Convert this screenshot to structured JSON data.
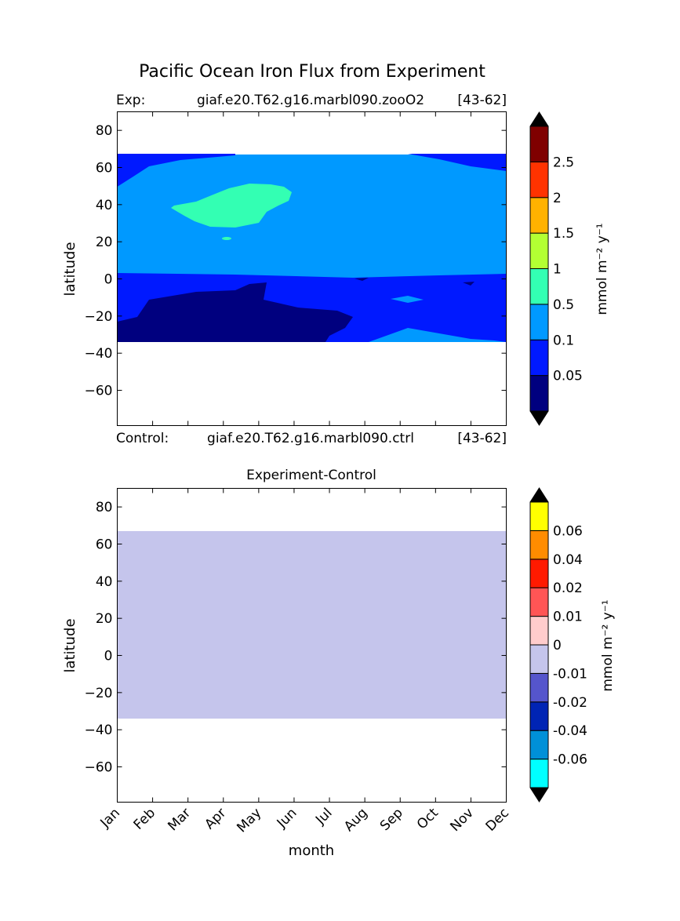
{
  "figure": {
    "title": "Pacific Ocean Iron Flux from Experiment"
  },
  "chart_data": [
    {
      "type": "heatmap",
      "panel": "experiment",
      "left_title": "Exp:",
      "center_title": "giaf.e20.T62.g16.marbl090.zooO2",
      "right_title": "[43-62]",
      "bottom_left_label": "Control:",
      "bottom_center_label": "giaf.e20.T62.g16.marbl090.ctrl",
      "bottom_right_label": "[43-62]",
      "xlabel": "",
      "ylabel": "latitude",
      "ylim": [
        -79,
        90
      ],
      "xlim": [
        1,
        12
      ],
      "yticks": [
        80,
        60,
        40,
        20,
        0,
        -20,
        -40,
        -60
      ],
      "data_lat_range": [
        -34,
        67
      ],
      "colorbar": {
        "label": "mmol m⁻² y⁻¹",
        "levels": [
          "0.05",
          "0.1",
          "0.5",
          "1",
          "1.5",
          "2",
          "2.5"
        ],
        "colors": [
          "#00007f",
          "#0019ff",
          "#0099ff",
          "#33ffb3",
          "#b3ff33",
          "#ffb200",
          "#ff3300",
          "#7f0000"
        ],
        "extend": "both",
        "extend_color": "#000000"
      }
    },
    {
      "type": "heatmap",
      "panel": "difference",
      "title": "Experiment-Control",
      "xlabel": "month",
      "ylabel": "latitude",
      "ylim": [
        -79,
        90
      ],
      "xlim": [
        1,
        12
      ],
      "yticks": [
        80,
        60,
        40,
        20,
        0,
        -20,
        -40,
        -60
      ],
      "xticks": [
        "Jan",
        "Feb",
        "Mar",
        "Apr",
        "May",
        "Jun",
        "Jul",
        "Aug",
        "Sep",
        "Oct",
        "Nov",
        "Dec"
      ],
      "data_lat_range": [
        -34,
        67
      ],
      "fill_value_range": [
        -0.01,
        0
      ],
      "fill_color": "#c5c5ec",
      "colorbar": {
        "label": "mmol m⁻² y⁻¹",
        "levels": [
          "-0.06",
          "-0.04",
          "-0.02",
          "-0.01",
          "0",
          "0.01",
          "0.02",
          "0.04",
          "0.06"
        ],
        "colors": [
          "#00ffff",
          "#0090d8",
          "#0024b4",
          "#5555cc",
          "#c5c5ec",
          "#ffcccc",
          "#ff5555",
          "#ff1a00",
          "#ff8c00",
          "#ffff00"
        ],
        "extend": "both",
        "extend_color": "#000000"
      }
    }
  ]
}
